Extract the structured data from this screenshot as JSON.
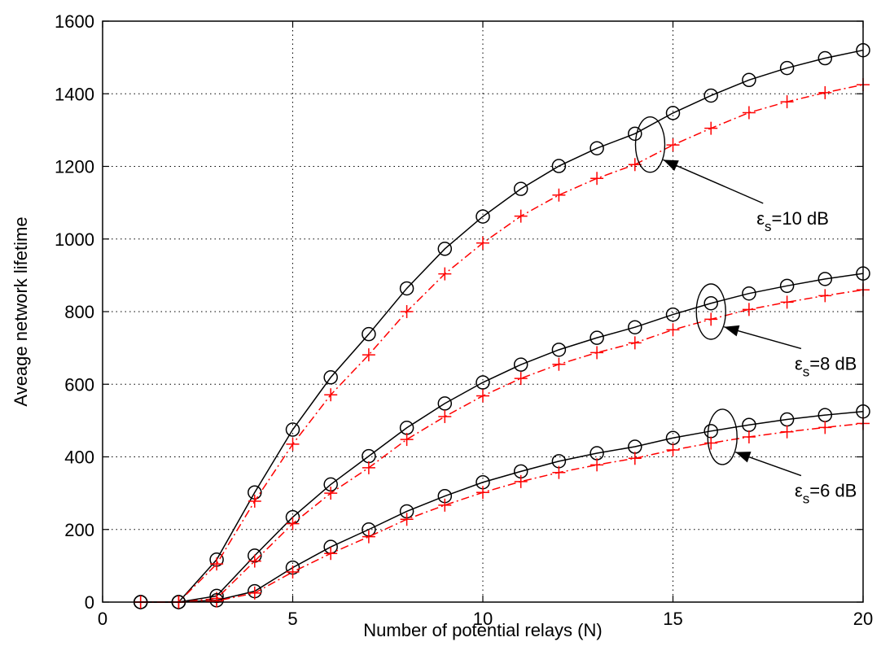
{
  "chart_data": {
    "type": "line",
    "title": "",
    "xlabel": "Number of potential relays (N)",
    "ylabel": "Aveage network lifetime",
    "xlim": [
      0,
      20
    ],
    "ylim": [
      0,
      1600
    ],
    "xticks": [
      "0",
      "5",
      "10",
      "15",
      "20"
    ],
    "yticks": [
      "0",
      "200",
      "400",
      "600",
      "800",
      "1000",
      "1200",
      "1400",
      "1600"
    ],
    "grid": true,
    "x": [
      1,
      2,
      3,
      4,
      5,
      6,
      7,
      8,
      9,
      10,
      11,
      12,
      13,
      14,
      15,
      16,
      17,
      18,
      19,
      20
    ],
    "series": [
      {
        "group": "10dB",
        "style": "solid-circle",
        "color": "#000000",
        "values": [
          0,
          0,
          117,
          302,
          475,
          619,
          738,
          864,
          973,
          1062,
          1138,
          1201,
          1250,
          1290,
          1347,
          1395,
          1438,
          1471,
          1498,
          1520
        ]
      },
      {
        "group": "10dB",
        "style": "dashdot-plus",
        "color": "#ff0000",
        "values": [
          0,
          0,
          105,
          278,
          435,
          571,
          681,
          800,
          904,
          989,
          1063,
          1121,
          1167,
          1205,
          1259,
          1305,
          1348,
          1378,
          1403,
          1425
        ]
      },
      {
        "group": "8dB",
        "style": "solid-circle",
        "color": "#000000",
        "values": [
          0,
          0,
          17,
          128,
          234,
          324,
          402,
          480,
          547,
          605,
          654,
          695,
          728,
          757,
          792,
          823,
          850,
          871,
          890,
          905
        ]
      },
      {
        "group": "8dB",
        "style": "dashdot-plus",
        "color": "#ff0000",
        "values": [
          0,
          0,
          10,
          113,
          216,
          300,
          370,
          448,
          511,
          568,
          616,
          655,
          687,
          714,
          750,
          779,
          806,
          826,
          844,
          860
        ]
      },
      {
        "group": "6dB",
        "style": "solid-circle",
        "color": "#000000",
        "values": [
          0,
          0,
          5,
          30,
          95,
          152,
          200,
          250,
          292,
          330,
          360,
          388,
          410,
          428,
          452,
          471,
          488,
          503,
          515,
          525
        ]
      },
      {
        "group": "6dB",
        "style": "dashdot-plus",
        "color": "#ff0000",
        "values": [
          0,
          0,
          3,
          25,
          83,
          134,
          180,
          228,
          267,
          302,
          332,
          357,
          378,
          396,
          419,
          438,
          455,
          469,
          481,
          492
        ]
      }
    ],
    "annotations": [
      {
        "group": "10dB",
        "prefix": "ε",
        "sub": "s",
        "suffix": "=10 dB",
        "ellipse": {
          "x": 14.4,
          "y": 1260
        },
        "text_pos": {
          "x": 17.2,
          "y": 1040
        }
      },
      {
        "group": "8dB",
        "prefix": "ε",
        "sub": "s",
        "suffix": "=8 dB",
        "ellipse": {
          "x": 16.0,
          "y": 800
        },
        "text_pos": {
          "x": 18.2,
          "y": 640
        }
      },
      {
        "group": "6dB",
        "prefix": "ε",
        "sub": "s",
        "suffix": "=6 dB",
        "ellipse": {
          "x": 16.3,
          "y": 455
        },
        "text_pos": {
          "x": 18.2,
          "y": 290
        }
      }
    ]
  }
}
